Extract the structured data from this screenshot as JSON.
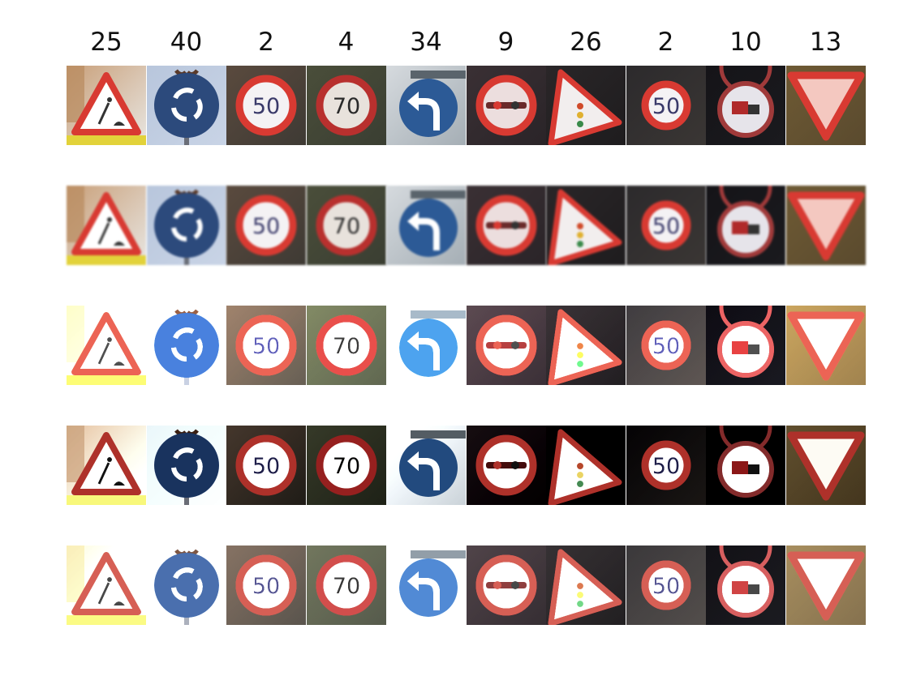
{
  "labels": [
    "25",
    "40",
    "2",
    "4",
    "34",
    "9",
    "26",
    "2",
    "10",
    "13"
  ],
  "sign_text": {
    "speed_50": "50",
    "speed_70": "70",
    "sign_50_alt": "50"
  },
  "sign_icons": [
    "road-work-sign-icon",
    "roundabout-sign-icon",
    "speed-limit-50-sign-icon",
    "speed-limit-70-sign-icon",
    "turn-left-ahead-sign-icon",
    "no-passing-sign-icon",
    "traffic-signals-sign-icon",
    "speed-limit-50-sign-icon",
    "no-passing-trucks-sign-icon",
    "yield-sign-icon"
  ],
  "row_variants": [
    "original",
    "smoothed",
    "high-contrast-bright",
    "high-contrast-dark",
    "histogram-equalized"
  ],
  "colors": {
    "sign_red": "#d83a32",
    "sign_blue": "#2c4a7c",
    "dark_bg": "#1e1c1e"
  }
}
